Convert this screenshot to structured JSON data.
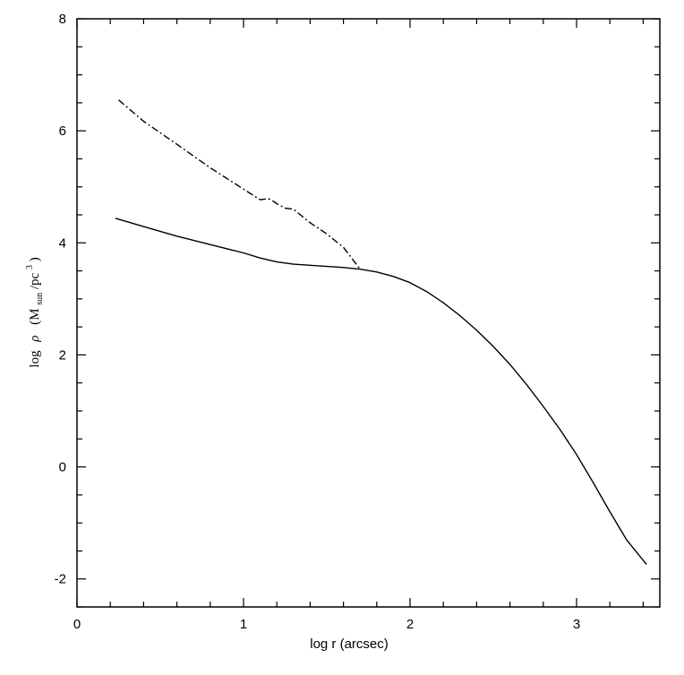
{
  "chart_data": {
    "type": "line",
    "xlabel": "log r (arcsec)",
    "ylabel": {
      "prefix": "log",
      "symbol": "ρ",
      "open": "(M",
      "subscript": "sun",
      "slash": "/pc",
      "superscript": "3",
      "close": ")"
    },
    "xlim": [
      0,
      3.5
    ],
    "ylim": [
      -2.5,
      8
    ],
    "x_ticks": [
      0,
      1,
      2,
      3
    ],
    "x_tick_labels": [
      "0",
      "1",
      "2",
      "3"
    ],
    "y_ticks": [
      -2,
      0,
      2,
      4,
      6,
      8
    ],
    "y_tick_labels": [
      "-2",
      "0",
      "2",
      "4",
      "6",
      "8"
    ],
    "x_minor_step": 0.2,
    "y_minor_step": 0.5,
    "grid": false,
    "series": [
      {
        "style": "solid",
        "color": "#000000",
        "x": [
          0.23,
          0.4,
          0.6,
          0.8,
          1.0,
          1.1,
          1.2,
          1.3,
          1.4,
          1.5,
          1.6,
          1.7,
          1.8,
          1.9,
          2.0,
          2.1,
          2.2,
          2.3,
          2.4,
          2.5,
          2.6,
          2.7,
          2.8,
          2.9,
          3.0,
          3.1,
          3.2,
          3.3,
          3.42
        ],
        "y": [
          4.44,
          4.29,
          4.12,
          3.97,
          3.82,
          3.73,
          3.66,
          3.62,
          3.6,
          3.58,
          3.56,
          3.53,
          3.48,
          3.4,
          3.29,
          3.13,
          2.93,
          2.7,
          2.44,
          2.15,
          1.83,
          1.47,
          1.08,
          0.67,
          0.22,
          -0.28,
          -0.8,
          -1.3,
          -1.74
        ]
      },
      {
        "style": "dashdot",
        "color": "#000000",
        "x": [
          0.25,
          0.4,
          0.6,
          0.8,
          1.0,
          1.1,
          1.15,
          1.18,
          1.2,
          1.25,
          1.3,
          1.35,
          1.4,
          1.5,
          1.6,
          1.7
        ],
        "y": [
          6.55,
          6.17,
          5.76,
          5.34,
          4.96,
          4.77,
          4.79,
          4.74,
          4.7,
          4.62,
          4.6,
          4.48,
          4.36,
          4.16,
          3.92,
          3.53
        ]
      }
    ]
  }
}
